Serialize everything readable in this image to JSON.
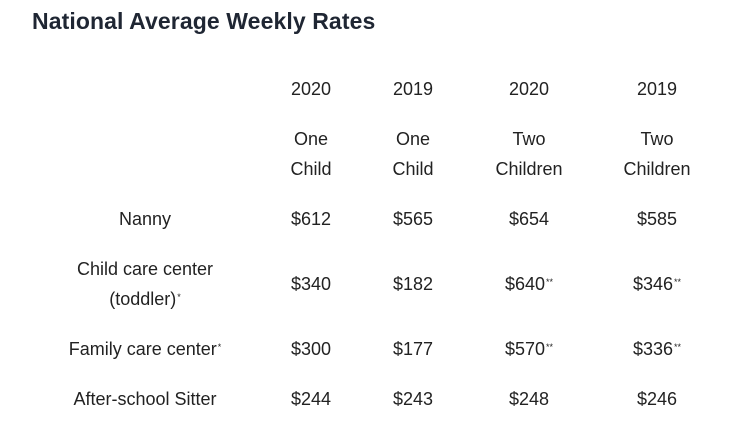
{
  "title": "National Average Weekly Rates",
  "columns": [
    {
      "year": "2020",
      "line1": "One",
      "line2": "Child"
    },
    {
      "year": "2019",
      "line1": "One",
      "line2": "Child"
    },
    {
      "year": "2020",
      "line1": "Two",
      "line2": "Children"
    },
    {
      "year": "2019",
      "line1": "Two",
      "line2": "Children"
    }
  ],
  "rows": [
    {
      "label1": "Nanny",
      "label2": "",
      "label_mark": "",
      "values": [
        {
          "v": "$612",
          "mark": ""
        },
        {
          "v": "$565",
          "mark": ""
        },
        {
          "v": "$654",
          "mark": ""
        },
        {
          "v": "$585",
          "mark": ""
        }
      ]
    },
    {
      "label1": "Child care center",
      "label2": "(toddler)",
      "label_mark": "*",
      "values": [
        {
          "v": "$340",
          "mark": ""
        },
        {
          "v": "$182",
          "mark": ""
        },
        {
          "v": "$640",
          "mark": "**"
        },
        {
          "v": "$346",
          "mark": "**"
        }
      ]
    },
    {
      "label1": "Family care center",
      "label2": "",
      "label_mark": "*",
      "values": [
        {
          "v": "$300",
          "mark": ""
        },
        {
          "v": "$177",
          "mark": ""
        },
        {
          "v": "$570",
          "mark": "**"
        },
        {
          "v": "$336",
          "mark": "**"
        }
      ]
    },
    {
      "label1": "After-school Sitter",
      "label2": "",
      "label_mark": "",
      "values": [
        {
          "v": "$244",
          "mark": ""
        },
        {
          "v": "$243",
          "mark": ""
        },
        {
          "v": "$248",
          "mark": ""
        },
        {
          "v": "$246",
          "mark": ""
        }
      ]
    }
  ]
}
